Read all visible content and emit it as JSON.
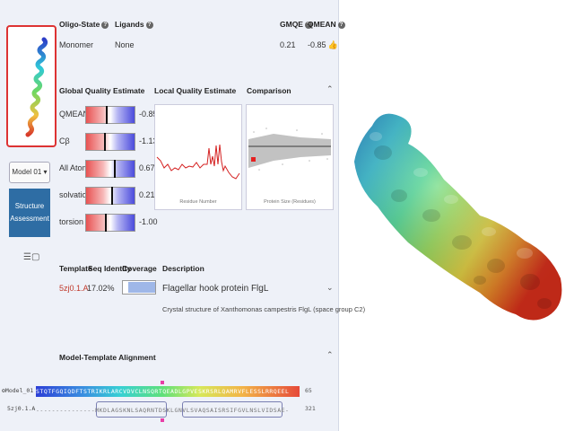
{
  "summary": {
    "oligo_state_header": "Oligo-State",
    "oligo_state_value": "Monomer",
    "ligands_header": "Ligands",
    "ligands_value": "None",
    "gmqe_header": "GMQE",
    "gmqe_value": "0.21",
    "qmean_header": "QMEAN",
    "qmean_value": "-0.85"
  },
  "model_selector": {
    "label": "Model 01 ▾"
  },
  "assessment_button": {
    "label": "Structure Assessment"
  },
  "quality": {
    "global_header": "Global Quality Estimate",
    "local_header": "Local Quality Estimate",
    "comparison_header": "Comparison",
    "local_x_caption": "Residue Number",
    "comparison_x_caption": "Protein Size (Residues)",
    "scores": [
      {
        "name": "QMEAN",
        "value": "-0.85",
        "z": -0.85
      },
      {
        "name": "Cβ",
        "value": "-1.13",
        "z": -1.13
      },
      {
        "name": "All Atom",
        "value": "0.67",
        "z": 0.67
      },
      {
        "name": "solvation",
        "value": "0.21",
        "z": 0.21
      },
      {
        "name": "torsion",
        "value": "-1.00",
        "z": -1.0
      }
    ]
  },
  "template": {
    "col_template": "Template",
    "col_identity": "Seq Identity",
    "col_coverage": "Coverage",
    "col_description": "Description",
    "id": "5zj0.1.A",
    "identity": "17.02%",
    "coverage": 0.8,
    "description": "Flagellar hook protein FlgL",
    "subtitle": "Crystal structure of Xanthomonas campestris FlgL (space group C2)"
  },
  "alignment": {
    "header": "Model-Template Alignment",
    "model_label": "Model_01",
    "model_seq": "STQTFGQIQDFTSTRIKRLARCVDVCLNSQRTQEADLGPVESKRSRLQAMRVFLESSLRRQEEL",
    "model_end": "65",
    "template_label": "5zj0.1.A",
    "template_seq": "---------------MKDLAGSKNLSAQRNTDSKLGNVLSVAQSAISRSIFGVLNSLVIDSAE-",
    "template_end": "321"
  },
  "colors": {
    "accent": "#2e6da4",
    "link": "#c0392b",
    "panel": "#eef1f8"
  }
}
